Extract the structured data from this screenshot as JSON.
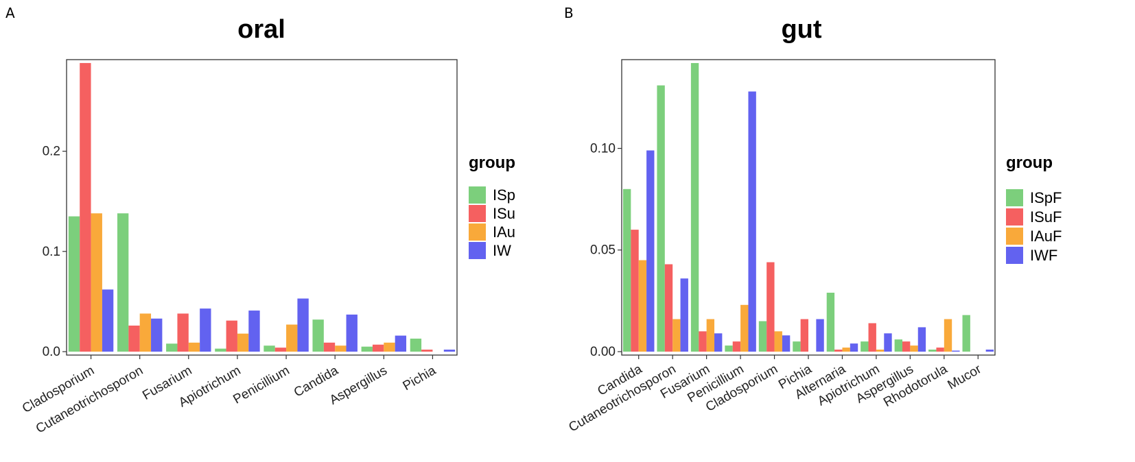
{
  "figure_labels": [
    "A",
    "B"
  ],
  "chart_data": [
    {
      "type": "bar",
      "title": "oral",
      "xlabel": "",
      "ylabel": "",
      "ylim": [
        0,
        0.29
      ],
      "yticks": [
        0.0,
        0.1,
        0.2
      ],
      "ytick_labels": [
        "0.0",
        "0.1",
        "0.2"
      ],
      "grid": false,
      "legend_title": "group",
      "legend_position": "right",
      "categories": [
        "Cladosporium",
        "Cutaneotrichosporon",
        "Fusarium",
        "Apiotrichum",
        "Penicillium",
        "Candida",
        "Aspergillus",
        "Pichia"
      ],
      "series": [
        {
          "name": "ISp",
          "color": "#7ccf7c",
          "values": [
            0.135,
            0.138,
            0.008,
            0.003,
            0.006,
            0.032,
            0.005,
            0.013
          ]
        },
        {
          "name": "ISu",
          "color": "#f56060",
          "values": [
            0.288,
            0.026,
            0.038,
            0.031,
            0.004,
            0.009,
            0.007,
            0.002
          ]
        },
        {
          "name": "IAu",
          "color": "#f9a93a",
          "values": [
            0.138,
            0.038,
            0.009,
            0.018,
            0.027,
            0.006,
            0.009,
            0.0
          ]
        },
        {
          "name": "IW",
          "color": "#6262f0",
          "values": [
            0.062,
            0.033,
            0.043,
            0.041,
            0.053,
            0.037,
            0.016,
            0.002
          ]
        }
      ]
    },
    {
      "type": "bar",
      "title": "gut",
      "xlabel": "",
      "ylabel": "",
      "ylim": [
        0,
        0.143
      ],
      "yticks": [
        0.0,
        0.05,
        0.1
      ],
      "ytick_labels": [
        "0.00",
        "0.05",
        "0.10"
      ],
      "grid": false,
      "legend_title": "group",
      "legend_position": "right",
      "categories": [
        "Candida",
        "Cutaneotrichosporon",
        "Fusarium",
        "Penicillium",
        "Cladosporium",
        "Pichia",
        "Alternaria",
        "Apiotrichum",
        "Aspergillus",
        "Rhodotorula",
        "Mucor"
      ],
      "series": [
        {
          "name": "ISpF",
          "color": "#7ccf7c",
          "values": [
            0.08,
            0.131,
            0.142,
            0.003,
            0.015,
            0.005,
            0.029,
            0.005,
            0.006,
            0.001,
            0.018
          ]
        },
        {
          "name": "ISuF",
          "color": "#f56060",
          "values": [
            0.06,
            0.043,
            0.01,
            0.005,
            0.044,
            0.016,
            0.001,
            0.014,
            0.005,
            0.002,
            0.0
          ]
        },
        {
          "name": "IAuF",
          "color": "#f9a93a",
          "values": [
            0.045,
            0.016,
            0.016,
            0.023,
            0.01,
            0.0,
            0.002,
            0.001,
            0.003,
            0.016,
            0.0
          ]
        },
        {
          "name": "IWF",
          "color": "#6262f0",
          "values": [
            0.099,
            0.036,
            0.009,
            0.128,
            0.008,
            0.016,
            0.004,
            0.009,
            0.012,
            0.0005,
            0.001
          ]
        }
      ]
    }
  ]
}
